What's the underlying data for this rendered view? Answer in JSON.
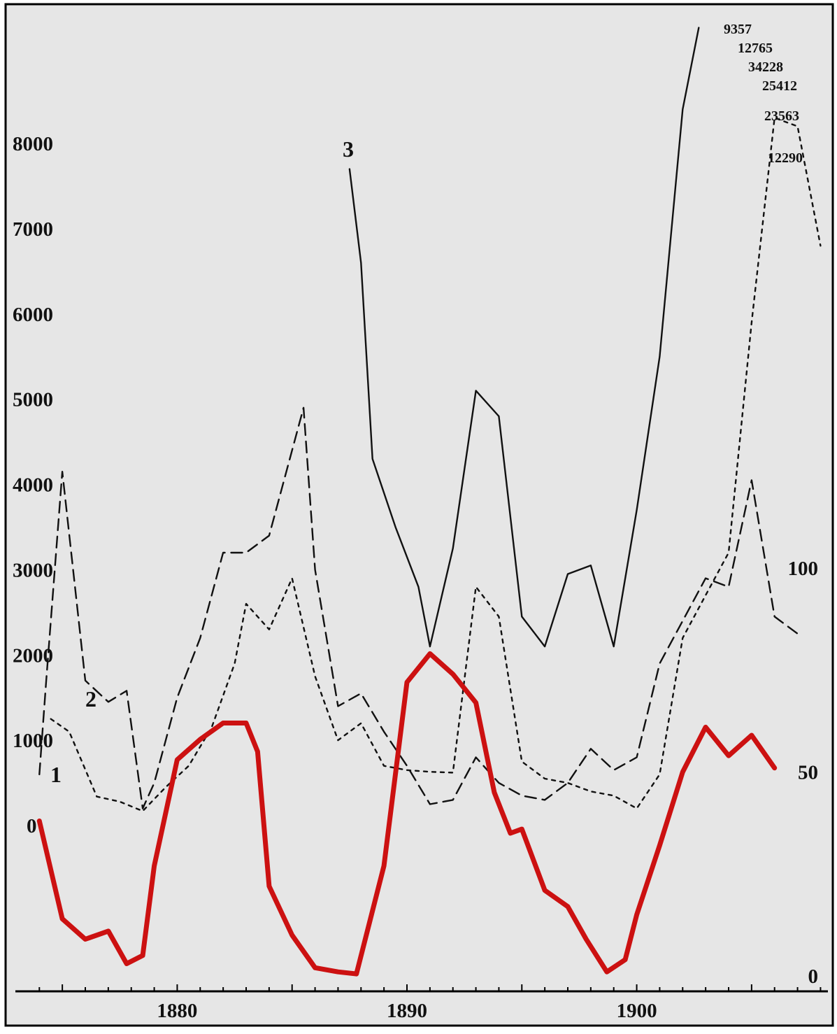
{
  "chart_data": {
    "type": "line",
    "title": "",
    "xlabel": "",
    "ylabel": "",
    "x_ticks": [
      1880,
      1890,
      1900
    ],
    "xlim": [
      1873.2,
      1908.2
    ],
    "left_axis": {
      "ticks": [
        0,
        1000,
        2000,
        3000,
        4000,
        5000,
        6000,
        7000,
        8000
      ],
      "ylim": [
        0,
        9000
      ]
    },
    "right_axis": {
      "ticks": [
        0,
        50,
        100
      ],
      "ylim": [
        0,
        100
      ]
    },
    "overflow_values": [
      "9357",
      "12765",
      "34228",
      "25412",
      "23563",
      "12290"
    ],
    "series": [
      {
        "name": "1",
        "axis": "left",
        "style": "dashed",
        "color": "#111111",
        "points": [
          [
            1874,
            600
          ],
          [
            1874.3,
            1700
          ],
          [
            1875,
            4150
          ],
          [
            1876,
            1700
          ],
          [
            1877,
            1450
          ],
          [
            1877.8,
            1580
          ],
          [
            1878.5,
            200
          ],
          [
            1879,
            500
          ],
          [
            1880,
            1500
          ],
          [
            1881,
            2200
          ],
          [
            1882,
            3200
          ],
          [
            1883,
            3200
          ],
          [
            1884,
            3400
          ],
          [
            1885.5,
            4900
          ],
          [
            1886,
            3000
          ],
          [
            1887,
            1400
          ],
          [
            1888,
            1550
          ],
          [
            1889,
            1100
          ],
          [
            1890,
            700
          ],
          [
            1891,
            250
          ],
          [
            1892,
            300
          ],
          [
            1893,
            800
          ],
          [
            1894,
            500
          ],
          [
            1895,
            350
          ],
          [
            1896,
            300
          ],
          [
            1897,
            500
          ],
          [
            1898,
            900
          ],
          [
            1899,
            650
          ],
          [
            1900,
            800
          ],
          [
            1901,
            1900
          ],
          [
            1902,
            2400
          ],
          [
            1903,
            2900
          ],
          [
            1904,
            2800
          ],
          [
            1905,
            4050
          ],
          [
            1906,
            2450
          ],
          [
            1907,
            2250
          ]
        ]
      },
      {
        "name": "2",
        "axis": "left",
        "style": "dotted",
        "color": "#111111",
        "points": [
          [
            1874.5,
            1250
          ],
          [
            1875.3,
            1100
          ],
          [
            1876.5,
            340
          ],
          [
            1877.5,
            280
          ],
          [
            1878.5,
            170
          ],
          [
            1879.5,
            450
          ],
          [
            1880.5,
            700
          ],
          [
            1881.5,
            1150
          ],
          [
            1882.5,
            1900
          ],
          [
            1883,
            2600
          ],
          [
            1884,
            2300
          ],
          [
            1885,
            2900
          ],
          [
            1886,
            1750
          ],
          [
            1887,
            1000
          ],
          [
            1888,
            1200
          ],
          [
            1889,
            700
          ],
          [
            1890,
            650
          ],
          [
            1891,
            630
          ],
          [
            1892,
            620
          ],
          [
            1893,
            2800
          ],
          [
            1894,
            2450
          ],
          [
            1895,
            750
          ],
          [
            1896,
            550
          ],
          [
            1897,
            500
          ],
          [
            1898,
            400
          ],
          [
            1899,
            350
          ],
          [
            1900,
            200
          ],
          [
            1901,
            600
          ],
          [
            1902,
            2200
          ],
          [
            1903,
            2700
          ],
          [
            1904,
            3200
          ],
          [
            1905,
            5900
          ],
          [
            1906,
            8300
          ],
          [
            1907,
            8200
          ],
          [
            1908,
            6800
          ]
        ]
      },
      {
        "name": "3",
        "axis": "left",
        "style": "solid",
        "color": "#111111",
        "points": [
          [
            1887.5,
            7700
          ],
          [
            1888,
            6600
          ],
          [
            1888.5,
            4300
          ],
          [
            1889.5,
            3500
          ],
          [
            1890.5,
            2800
          ],
          [
            1891,
            2100
          ],
          [
            1892,
            3250
          ],
          [
            1893,
            5100
          ],
          [
            1894,
            4800
          ],
          [
            1895,
            2450
          ],
          [
            1896,
            2100
          ],
          [
            1897,
            2950
          ],
          [
            1898,
            3050
          ],
          [
            1899,
            2100
          ],
          [
            1900,
            3700
          ],
          [
            1901,
            5500
          ],
          [
            1902,
            8400
          ],
          [
            1902.7,
            9357
          ]
        ]
      },
      {
        "name": "",
        "axis": "right",
        "style": "solid",
        "color": "#cc1111",
        "points": [
          [
            1874,
            38
          ],
          [
            1875,
            14
          ],
          [
            1876,
            9
          ],
          [
            1877,
            11
          ],
          [
            1877.8,
            3
          ],
          [
            1878.5,
            5
          ],
          [
            1879,
            27
          ],
          [
            1880,
            53
          ],
          [
            1881,
            58
          ],
          [
            1882,
            62
          ],
          [
            1883,
            62
          ],
          [
            1883.5,
            55
          ],
          [
            1884,
            22
          ],
          [
            1885,
            10
          ],
          [
            1886,
            2
          ],
          [
            1887,
            1
          ],
          [
            1887.8,
            0.5
          ],
          [
            1889,
            27
          ],
          [
            1890,
            72
          ],
          [
            1891,
            79
          ],
          [
            1892,
            74
          ],
          [
            1893,
            67
          ],
          [
            1893.8,
            45
          ],
          [
            1894.5,
            35
          ],
          [
            1895,
            36
          ],
          [
            1896,
            21
          ],
          [
            1897,
            17
          ],
          [
            1897.8,
            9
          ],
          [
            1898.7,
            1
          ],
          [
            1899.5,
            4
          ],
          [
            1900,
            15
          ],
          [
            1901,
            32
          ],
          [
            1902,
            50
          ],
          [
            1903,
            61
          ],
          [
            1904,
            54
          ],
          [
            1905,
            59
          ],
          [
            1906,
            51
          ]
        ]
      }
    ],
    "colors": {
      "background": "#e6e6e6",
      "frame": "#000000",
      "sunspot": "#cc1111",
      "ink": "#111111"
    }
  }
}
